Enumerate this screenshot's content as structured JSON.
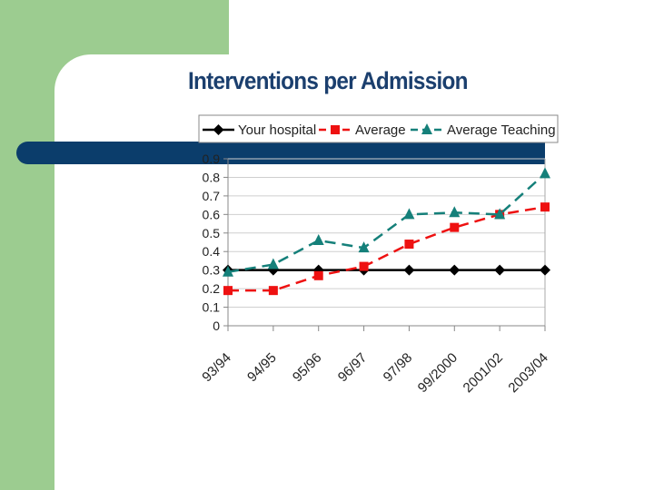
{
  "slide": {
    "title": "Interventions per Admission",
    "colors": {
      "green": "#9ccc90",
      "navy_bar": "#0b3d6b",
      "title": "#1b3f6e"
    }
  },
  "chart_data": {
    "type": "line",
    "title": "Interventions per Admission",
    "categories": [
      "93/94",
      "94/95",
      "95/96",
      "96/97",
      "97/98",
      "99/2000",
      "2001/02",
      "2003/04"
    ],
    "ylim": [
      0,
      0.9
    ],
    "yticks": [
      0,
      0.1,
      0.2,
      0.3,
      0.4,
      0.5,
      0.6,
      0.7,
      0.8,
      0.9
    ],
    "ytick_labels": [
      "0",
      "0.1",
      "0.2",
      "0.3",
      "0.4",
      "0.5",
      "0.6",
      "0.7",
      "0.8",
      "0.9"
    ],
    "grid": true,
    "legend_position": "top",
    "series": [
      {
        "name": "Your hospital",
        "color": "#000000",
        "marker": "diamond",
        "dash": "solid",
        "values": [
          0.3,
          0.3,
          0.3,
          0.3,
          0.3,
          0.3,
          0.3,
          0.3
        ]
      },
      {
        "name": "Average",
        "color": "#ee1111",
        "marker": "square",
        "dash": "dashed",
        "values": [
          0.19,
          0.19,
          0.27,
          0.32,
          0.44,
          0.53,
          0.6,
          0.64
        ]
      },
      {
        "name": "Average Teaching",
        "color": "#15807a",
        "marker": "triangle",
        "dash": "dashed",
        "values": [
          0.29,
          0.33,
          0.46,
          0.42,
          0.6,
          0.61,
          0.6,
          0.82
        ]
      }
    ]
  }
}
